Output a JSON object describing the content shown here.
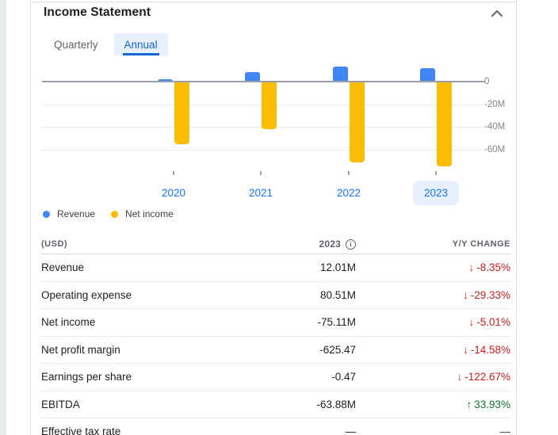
{
  "panel": {
    "title": "Income Statement",
    "collapse_icon": "chevron-up"
  },
  "tabs": [
    {
      "label": "Quarterly",
      "selected": false
    },
    {
      "label": "Annual",
      "selected": true
    }
  ],
  "chart_data": {
    "type": "bar",
    "categories": [
      "2020",
      "2021",
      "2022",
      "2023"
    ],
    "series": [
      {
        "name": "Revenue",
        "color": "#4285f4",
        "values": [
          2.0,
          8.6,
          13.1,
          12.01
        ]
      },
      {
        "name": "Net income",
        "color": "#fbbc04",
        "values": [
          -55.4,
          -42.3,
          -71.5,
          -75.11
        ]
      }
    ],
    "unit": "USD, millions",
    "y_ticks": [
      "0",
      "-20M",
      "-40M",
      "-60M"
    ],
    "y_tick_values": [
      0,
      -20,
      -40,
      -60
    ],
    "ylim": [
      -80,
      15
    ],
    "grid": true,
    "legend_position": "bottom-left",
    "highlighted_category": "2023",
    "title": ""
  },
  "legend": [
    {
      "label": "Revenue",
      "color": "#4285f4"
    },
    {
      "label": "Net income",
      "color": "#fbbc04"
    }
  ],
  "table": {
    "columns": [
      "(USD)",
      "2023",
      "Y/Y CHANGE"
    ],
    "rows": [
      {
        "label": "Revenue",
        "value": "12.01M",
        "change": "-8.35%",
        "direction": "down"
      },
      {
        "label": "Operating expense",
        "value": "80.51M",
        "change": "-29.33%",
        "direction": "down"
      },
      {
        "label": "Net income",
        "value": "-75.11M",
        "change": "-5.01%",
        "direction": "down"
      },
      {
        "label": "Net profit margin",
        "value": "-625.47",
        "change": "-14.58%",
        "direction": "down"
      },
      {
        "label": "Earnings per share",
        "value": "-0.47",
        "change": "-122.67%",
        "direction": "down"
      },
      {
        "label": "EBITDA",
        "value": "-63.88M",
        "change": "33.93%",
        "direction": "up"
      },
      {
        "label": "Effective tax rate",
        "value": "—",
        "change": "—",
        "direction": "none"
      }
    ]
  },
  "colors": {
    "revenue_bar": "#4285f4",
    "net_income_bar": "#fbbc04",
    "tab_active": "#1967d2",
    "tab_active_bg": "#e8f0fe",
    "year_label": "#1a73e8",
    "negative_change": "#c5221f",
    "positive_change": "#137333",
    "axis_text": "#80868b"
  }
}
